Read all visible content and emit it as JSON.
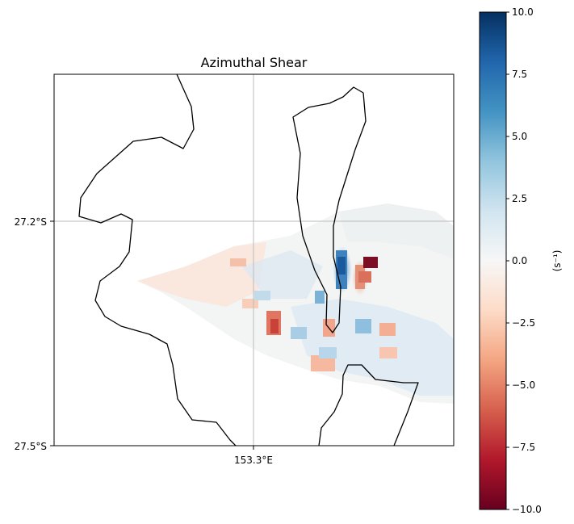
{
  "chart_data": {
    "type": "heatmap",
    "title": "Azimuthal Shear",
    "x_ticks": [
      {
        "value": 153.3,
        "label": "153.3°E"
      }
    ],
    "y_ticks": [
      {
        "value": -27.2,
        "label": "27.2°S"
      },
      {
        "value": -27.5,
        "label": "27.5°S"
      }
    ],
    "gridlines": true,
    "colorbar": {
      "label": "(s⁻¹)",
      "colormap": "RdBu",
      "vmin": -10.0,
      "vmax": 10.0,
      "ticks": [
        {
          "value": 10.0,
          "label": "10.0"
        },
        {
          "value": 7.5,
          "label": "7.5"
        },
        {
          "value": 5.0,
          "label": "5.0"
        },
        {
          "value": 2.5,
          "label": "2.5"
        },
        {
          "value": 0.0,
          "label": "0.0"
        },
        {
          "value": -2.5,
          "label": "−2.5"
        },
        {
          "value": -5.0,
          "label": "−5.0"
        },
        {
          "value": -7.5,
          "label": "−7.5"
        },
        {
          "value": -10.0,
          "label": "−10.0"
        }
      ],
      "color_stops": [
        "#67001f",
        "#b2182b",
        "#d6604d",
        "#f4a582",
        "#fddbc7",
        "#f7f7f7",
        "#d1e5f0",
        "#92c5de",
        "#4393c3",
        "#2166ac",
        "#053061"
      ]
    }
  }
}
